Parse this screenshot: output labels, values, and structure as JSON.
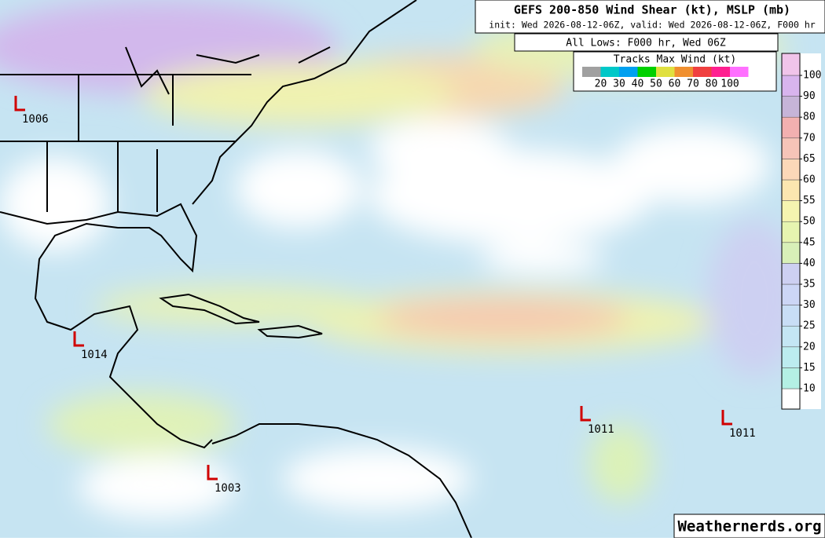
{
  "header": {
    "title": "GEFS 200-850 Wind Shear (kt), MSLP (mb)",
    "subtitle": "init: Wed 2026-08-12-06Z, valid: Wed 2026-08-12-06Z, F000 hr",
    "lows_caption": "All Lows: F000 hr, Wed 06Z"
  },
  "track_legend": {
    "title": "Tracks Max Wind (kt)",
    "colors": [
      "#a0a0a0",
      "#00c8c8",
      "#00a0f0",
      "#00d000",
      "#e0e040",
      "#f09030",
      "#f04040",
      "#ff2090",
      "#ff70ff"
    ],
    "labels": [
      20,
      30,
      40,
      50,
      60,
      70,
      80,
      100
    ]
  },
  "colorbar": {
    "ticks": [
      10,
      15,
      20,
      25,
      30,
      35,
      40,
      45,
      50,
      55,
      60,
      65,
      70,
      80,
      90,
      100
    ],
    "colors": [
      "#ffffff",
      "#b4f0e4",
      "#bcecef",
      "#c4e6f4",
      "#c8def6",
      "#ccd6f6",
      "#cdd0f2",
      "#d8f0b8",
      "#e6f4b0",
      "#f5f4b0",
      "#fbe6b0",
      "#fbd8b8",
      "#f6c4b8",
      "#f2b0b0",
      "#c6b4d8",
      "#d8b4ee",
      "#f0c4ea"
    ]
  },
  "lows": [
    "1006",
    "1014",
    "1011",
    "1011",
    "1003"
  ],
  "footer": "Weathernerds.org"
}
